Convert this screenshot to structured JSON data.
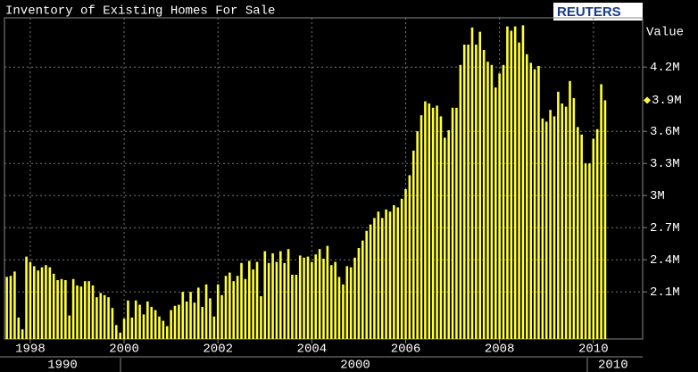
{
  "chart_data": {
    "type": "bar",
    "title": "Inventory of Existing Homes For Sale",
    "source": "REUTERS",
    "value_label": "Value",
    "color": "#ffff33",
    "grid": true,
    "x": [
      1997.5,
      1997.583,
      1997.667,
      1997.75,
      1997.833,
      1997.917,
      1998,
      1998.083,
      1998.167,
      1998.25,
      1998.333,
      1998.417,
      1998.5,
      1998.583,
      1998.667,
      1998.75,
      1998.833,
      1998.917,
      1999,
      1999.083,
      1999.167,
      1999.25,
      1999.333,
      1999.417,
      1999.5,
      1999.583,
      1999.667,
      1999.75,
      1999.833,
      1999.917,
      2000,
      2000.083,
      2000.167,
      2000.25,
      2000.333,
      2000.417,
      2000.5,
      2000.583,
      2000.667,
      2000.75,
      2000.833,
      2000.917,
      2001,
      2001.083,
      2001.167,
      2001.25,
      2001.333,
      2001.417,
      2001.5,
      2001.583,
      2001.667,
      2001.75,
      2001.833,
      2001.917,
      2002,
      2002.083,
      2002.167,
      2002.25,
      2002.333,
      2002.417,
      2002.5,
      2002.583,
      2002.667,
      2002.75,
      2002.833,
      2002.917,
      2003,
      2003.083,
      2003.167,
      2003.25,
      2003.333,
      2003.417,
      2003.5,
      2003.583,
      2003.667,
      2003.75,
      2003.833,
      2003.917,
      2004,
      2004.083,
      2004.167,
      2004.25,
      2004.333,
      2004.417,
      2004.5,
      2004.583,
      2004.667,
      2004.75,
      2004.833,
      2004.917,
      2005,
      2005.083,
      2005.167,
      2005.25,
      2005.333,
      2005.417,
      2005.5,
      2005.583,
      2005.667,
      2005.75,
      2005.833,
      2005.917,
      2006,
      2006.083,
      2006.167,
      2006.25,
      2006.333,
      2006.417,
      2006.5,
      2006.583,
      2006.667,
      2006.75,
      2006.833,
      2006.917,
      2007,
      2007.083,
      2007.167,
      2007.25,
      2007.333,
      2007.417,
      2007.5,
      2007.583,
      2007.667,
      2007.75,
      2007.833,
      2007.917,
      2008,
      2008.083,
      2008.167,
      2008.25,
      2008.333,
      2008.417,
      2008.5,
      2008.583,
      2008.667,
      2008.75,
      2008.833,
      2008.917,
      2009,
      2009.083,
      2009.167,
      2009.25,
      2009.333,
      2009.417,
      2009.5,
      2009.583,
      2009.667,
      2009.75,
      2009.833,
      2009.917,
      2010,
      2010.083,
      2010.167,
      2010.25
    ],
    "values": [
      2.24,
      2.25,
      2.29,
      1.86,
      1.75,
      2.43,
      2.38,
      2.34,
      2.3,
      2.33,
      2.35,
      2.33,
      2.27,
      2.21,
      2.22,
      2.21,
      1.88,
      2.22,
      2.16,
      2.15,
      2.2,
      2.2,
      2.16,
      2.05,
      2.09,
      2.07,
      2.05,
      1.95,
      1.79,
      1.72,
      1.85,
      2.02,
      1.86,
      2.02,
      1.98,
      1.89,
      2.01,
      1.96,
      1.93,
      1.87,
      1.83,
      1.78,
      1.93,
      1.97,
      1.98,
      2.1,
      2.01,
      2.1,
      2.0,
      2.14,
      1.96,
      2.17,
      2.04,
      1.87,
      2.17,
      2.07,
      2.25,
      2.28,
      2.2,
      2.25,
      2.37,
      2.22,
      2.39,
      2.31,
      2.38,
      2.06,
      2.48,
      2.37,
      2.46,
      2.38,
      2.48,
      2.37,
      2.5,
      2.26,
      2.26,
      2.44,
      2.42,
      2.43,
      2.38,
      2.45,
      2.5,
      2.41,
      2.53,
      2.35,
      2.38,
      2.24,
      2.17,
      2.34,
      2.33,
      2.42,
      2.51,
      2.58,
      2.67,
      2.73,
      2.79,
      2.85,
      2.79,
      2.87,
      2.85,
      2.91,
      2.89,
      2.97,
      3.06,
      3.19,
      3.42,
      3.6,
      3.75,
      3.88,
      3.86,
      3.82,
      3.84,
      3.74,
      3.54,
      3.61,
      3.82,
      3.82,
      4.22,
      4.41,
      4.41,
      4.57,
      4.41,
      4.53,
      4.36,
      4.25,
      4.22,
      4.01,
      4.14,
      4.22,
      4.58,
      4.54,
      4.58,
      4.43,
      4.59,
      4.32,
      4.24,
      4.18,
      4.21,
      3.72,
      3.69,
      3.8,
      3.74,
      3.97,
      3.86,
      3.83,
      4.07,
      3.91,
      3.64,
      3.57,
      3.3,
      3.3,
      3.53,
      3.62,
      4.04,
      3.89
    ],
    "xlim": [
      1997.45,
      2011.05
    ],
    "xticks": [
      1998,
      2000,
      2002,
      2004,
      2006,
      2008,
      2010
    ],
    "ylim": [
      1.66,
      4.66
    ],
    "yticks": [
      {
        "value": 2.1,
        "label": "2.1M"
      },
      {
        "value": 2.4,
        "label": "2.4M"
      },
      {
        "value": 2.7,
        "label": "2.7M"
      },
      {
        "value": 3,
        "label": "3M"
      },
      {
        "value": 3.3,
        "label": "3.3M"
      },
      {
        "value": 3.6,
        "label": "3.6M"
      },
      {
        "value": 4.2,
        "label": "4.2M"
      }
    ],
    "last_value": {
      "value": 3.89,
      "label": "3.9M"
    },
    "decade_labels": [
      "1990",
      "2000",
      "2010"
    ]
  }
}
